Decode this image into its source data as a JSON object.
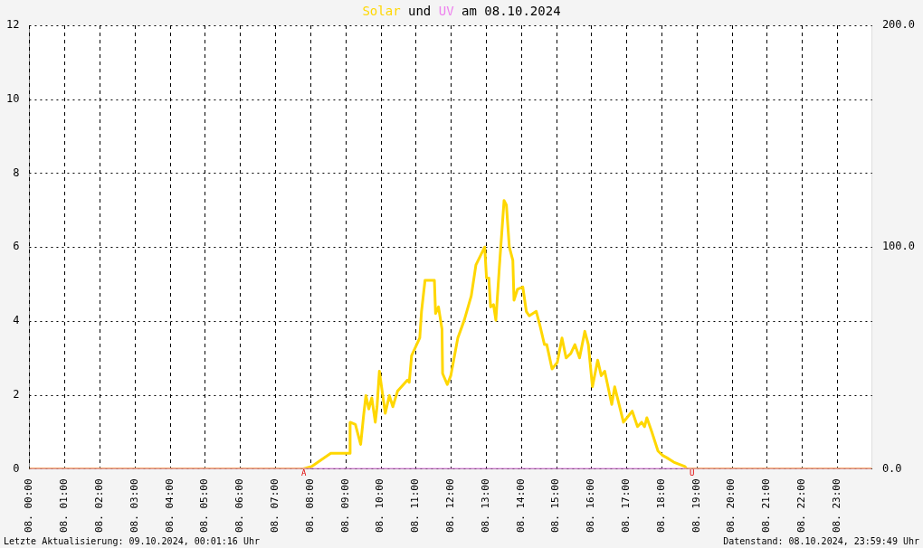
{
  "chart_data": {
    "type": "line",
    "title": "Solar und UV am 08.10.2024",
    "xlim": [
      "2024-10-08T00:00",
      "2024-10-09T00:00"
    ],
    "xticks": [
      {
        "value": "2024-10-08T00:00",
        "label": "08. 00:00"
      },
      {
        "value": "2024-10-08T01:00",
        "label": "08. 01:00"
      },
      {
        "value": "2024-10-08T02:00",
        "label": "08. 02:00"
      },
      {
        "value": "2024-10-08T03:00",
        "label": "08. 03:00"
      },
      {
        "value": "2024-10-08T04:00",
        "label": "08. 04:00"
      },
      {
        "value": "2024-10-08T05:00",
        "label": "08. 05:00"
      },
      {
        "value": "2024-10-08T06:00",
        "label": "08. 06:00"
      },
      {
        "value": "2024-10-08T07:00",
        "label": "08. 07:00"
      },
      {
        "value": "2024-10-08T08:00",
        "label": "08. 08:00"
      },
      {
        "value": "2024-10-08T09:00",
        "label": "08. 09:00"
      },
      {
        "value": "2024-10-08T10:00",
        "label": "08. 10:00"
      },
      {
        "value": "2024-10-08T11:00",
        "label": "08. 11:00"
      },
      {
        "value": "2024-10-08T12:00",
        "label": "08. 12:00"
      },
      {
        "value": "2024-10-08T13:00",
        "label": "08. 13:00"
      },
      {
        "value": "2024-10-08T14:00",
        "label": "08. 14:00"
      },
      {
        "value": "2024-10-08T15:00",
        "label": "08. 15:00"
      },
      {
        "value": "2024-10-08T16:00",
        "label": "08. 16:00"
      },
      {
        "value": "2024-10-08T17:00",
        "label": "08. 17:00"
      },
      {
        "value": "2024-10-08T18:00",
        "label": "08. 18:00"
      },
      {
        "value": "2024-10-08T19:00",
        "label": "08. 19:00"
      },
      {
        "value": "2024-10-08T20:00",
        "label": "08. 20:00"
      },
      {
        "value": "2024-10-08T21:00",
        "label": "08. 21:00"
      },
      {
        "value": "2024-10-08T22:00",
        "label": "08. 22:00"
      },
      {
        "value": "2024-10-08T23:00",
        "label": "08. 23:00"
      }
    ],
    "ylim": [
      0,
      12
    ],
    "yticks": [
      0,
      2,
      4,
      6,
      8,
      10,
      12
    ],
    "y2lim": [
      0,
      200
    ],
    "y2ticks": [
      {
        "value": 0,
        "label": "0.0"
      },
      {
        "value": 100,
        "label": "100.0"
      },
      {
        "value": 200,
        "label": "200.0"
      }
    ],
    "grid": true,
    "legend": false,
    "marker": "none",
    "line_style": "solid",
    "series": [
      {
        "color": "#ffd700",
        "axis": "y2",
        "x": [
          "2024-10-08T00:00",
          "2024-10-08T07:48",
          "2024-10-08T08:02",
          "2024-10-08T08:35",
          "2024-10-08T09:07",
          "2024-10-08T09:08",
          "2024-10-08T09:17",
          "2024-10-08T09:26",
          "2024-10-08T09:31",
          "2024-10-08T09:35",
          "2024-10-08T09:40",
          "2024-10-08T09:45",
          "2024-10-08T09:51",
          "2024-10-08T09:54",
          "2024-10-08T09:58",
          "2024-10-08T10:08",
          "2024-10-08T10:15",
          "2024-10-08T10:21",
          "2024-10-08T10:29",
          "2024-10-08T10:46",
          "2024-10-08T10:49",
          "2024-10-08T10:53",
          "2024-10-08T11:07",
          "2024-10-08T11:10",
          "2024-10-08T11:16",
          "2024-10-08T11:32",
          "2024-10-08T11:34",
          "2024-10-08T11:39",
          "2024-10-08T11:45",
          "2024-10-08T11:46",
          "2024-10-08T11:54",
          "2024-10-08T12:00",
          "2024-10-08T12:12",
          "2024-10-08T12:23",
          "2024-10-08T12:35",
          "2024-10-08T12:43",
          "2024-10-08T12:58",
          "2024-10-08T13:01",
          "2024-10-08T13:05",
          "2024-10-08T13:08",
          "2024-10-08T13:13",
          "2024-10-08T13:17",
          "2024-10-08T13:23",
          "2024-10-08T13:31",
          "2024-10-08T13:35",
          "2024-10-08T13:40",
          "2024-10-08T13:46",
          "2024-10-08T13:48",
          "2024-10-08T13:54",
          "2024-10-08T14:03",
          "2024-10-08T14:09",
          "2024-10-08T14:14",
          "2024-10-08T14:26",
          "2024-10-08T14:32",
          "2024-10-08T14:40",
          "2024-10-08T14:44",
          "2024-10-08T14:53",
          "2024-10-08T15:02",
          "2024-10-08T15:10",
          "2024-10-08T15:17",
          "2024-10-08T15:25",
          "2024-10-08T15:32",
          "2024-10-08T15:40",
          "2024-10-08T15:49",
          "2024-10-08T15:55",
          "2024-10-08T16:02",
          "2024-10-08T16:11",
          "2024-10-08T16:17",
          "2024-10-08T16:23",
          "2024-10-08T16:35",
          "2024-10-08T16:40",
          "2024-10-08T16:55",
          "2024-10-08T17:04",
          "2024-10-08T17:10",
          "2024-10-08T17:19",
          "2024-10-08T17:26",
          "2024-10-08T17:31",
          "2024-10-08T17:35",
          "2024-10-08T17:43",
          "2024-10-08T17:54",
          "2024-10-08T18:02",
          "2024-10-08T18:09",
          "2024-10-08T18:21",
          "2024-10-08T18:40",
          "2024-10-08T18:43",
          "2024-10-08T23:59"
        ],
        "values": [
          0,
          0,
          1,
          7,
          7,
          21,
          20,
          11,
          24,
          33,
          27,
          32,
          21,
          28,
          44,
          25,
          33,
          28,
          35,
          40,
          39,
          51,
          59,
          71,
          85,
          85,
          70,
          73,
          63,
          43,
          38,
          42,
          59,
          67,
          78,
          92,
          100,
          86,
          86,
          73,
          74,
          67,
          91,
          121,
          119,
          100,
          94,
          76,
          81,
          82,
          71,
          69,
          71,
          65,
          56,
          56,
          45,
          48,
          59,
          50,
          52,
          56,
          50,
          62,
          56,
          37,
          49,
          42,
          44,
          29,
          37,
          21,
          24,
          26,
          19,
          21,
          19,
          23,
          17,
          8,
          6,
          5,
          3,
          1,
          0,
          0
        ]
      },
      {
        "color": "#ee82ee",
        "x": [
          "2024-10-08T00:00",
          "2024-10-08T23:59"
        ],
        "values": [
          0,
          0
        ]
      }
    ],
    "annotations": [
      {
        "text": "A",
        "x": "2024-10-08T07:49",
        "y": 0
      },
      {
        "text": "U",
        "x": "2024-10-08T18:52",
        "y": 0
      },
      "Letzte Aktualisierung: 09.10.2024, 00:01:16 Uhr",
      "Datenstand: 08.10.2024, 23:59:49 Uhr"
    ]
  }
}
